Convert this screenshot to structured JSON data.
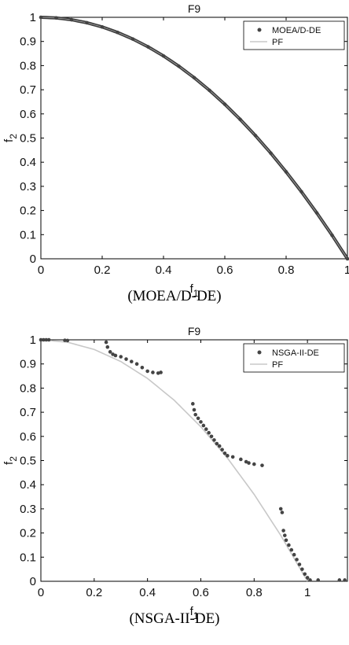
{
  "chart_data": [
    {
      "type": "scatter",
      "title": "F9",
      "xlabel": "f1",
      "ylabel": "f2",
      "xlim": [
        0,
        1
      ],
      "ylim": [
        0,
        1
      ],
      "xticks": [
        "0",
        "0.2",
        "0.4",
        "0.6",
        "0.8",
        "1"
      ],
      "yticks": [
        "0",
        "0.1",
        "0.2",
        "0.3",
        "0.4",
        "0.5",
        "0.6",
        "0.7",
        "0.8",
        "0.9",
        "1"
      ],
      "caption": "(MOEA/D-DE)",
      "legend_placement": "top-right",
      "series": [
        {
          "name": "MOEA/D-DE",
          "kind": "markers",
          "color": "#444444",
          "x": [
            0.0,
            0.05,
            0.1,
            0.15,
            0.2,
            0.25,
            0.3,
            0.35,
            0.4,
            0.45,
            0.5,
            0.55,
            0.6,
            0.65,
            0.7,
            0.75,
            0.8,
            0.85,
            0.9,
            0.95,
            1.0
          ],
          "y": [
            1.0,
            0.9975,
            0.99,
            0.9775,
            0.96,
            0.9375,
            0.91,
            0.8775,
            0.84,
            0.7975,
            0.75,
            0.6975,
            0.64,
            0.5775,
            0.51,
            0.4375,
            0.36,
            0.2775,
            0.19,
            0.0975,
            0.0
          ]
        },
        {
          "name": "PF",
          "kind": "line",
          "color": "#c8c8c8",
          "x": [
            0.0,
            0.1,
            0.2,
            0.3,
            0.4,
            0.5,
            0.6,
            0.7,
            0.8,
            0.9,
            1.0
          ],
          "y": [
            1.0,
            0.99,
            0.96,
            0.91,
            0.84,
            0.75,
            0.64,
            0.51,
            0.36,
            0.19,
            0.0
          ]
        }
      ]
    },
    {
      "type": "scatter",
      "title": "F9",
      "xlabel": "f1",
      "ylabel": "f2",
      "xlim": [
        0,
        1.15
      ],
      "ylim": [
        0,
        1
      ],
      "xticks": [
        "0",
        "0.2",
        "0.4",
        "0.6",
        "0.8",
        "1"
      ],
      "yticks": [
        "0",
        "0.1",
        "0.2",
        "0.3",
        "0.4",
        "0.5",
        "0.6",
        "0.7",
        "0.8",
        "0.9",
        "1"
      ],
      "caption": "(NSGA-II-DE)",
      "legend_placement": "top-right",
      "series": [
        {
          "name": "NSGA-II-DE",
          "kind": "markers",
          "color": "#444444",
          "x": [
            0.0,
            0.01,
            0.02,
            0.03,
            0.09,
            0.1,
            0.245,
            0.25,
            0.26,
            0.27,
            0.28,
            0.3,
            0.32,
            0.34,
            0.36,
            0.38,
            0.4,
            0.42,
            0.44,
            0.45,
            0.57,
            0.575,
            0.58,
            0.59,
            0.6,
            0.61,
            0.62,
            0.63,
            0.64,
            0.65,
            0.66,
            0.67,
            0.68,
            0.69,
            0.7,
            0.72,
            0.75,
            0.77,
            0.78,
            0.8,
            0.83,
            0.9,
            0.905,
            0.91,
            0.915,
            0.92,
            0.93,
            0.94,
            0.95,
            0.96,
            0.97,
            0.98,
            0.99,
            1.0,
            1.01,
            1.04,
            1.12,
            1.14
          ],
          "y": [
            1.0,
            1.0,
            1.0,
            1.0,
            0.998,
            0.997,
            0.99,
            0.97,
            0.95,
            0.94,
            0.935,
            0.93,
            0.92,
            0.91,
            0.9,
            0.885,
            0.87,
            0.865,
            0.862,
            0.865,
            0.735,
            0.71,
            0.69,
            0.675,
            0.66,
            0.645,
            0.63,
            0.615,
            0.6,
            0.585,
            0.57,
            0.56,
            0.545,
            0.53,
            0.52,
            0.515,
            0.505,
            0.495,
            0.49,
            0.485,
            0.48,
            0.3,
            0.285,
            0.21,
            0.19,
            0.17,
            0.15,
            0.13,
            0.11,
            0.09,
            0.07,
            0.05,
            0.03,
            0.015,
            0.005,
            0.005,
            0.005,
            0.005
          ]
        },
        {
          "name": "PF",
          "kind": "line",
          "color": "#c8c8c8",
          "x": [
            0.0,
            0.1,
            0.2,
            0.3,
            0.4,
            0.5,
            0.6,
            0.7,
            0.8,
            0.9,
            1.0
          ],
          "y": [
            1.0,
            0.99,
            0.96,
            0.91,
            0.84,
            0.75,
            0.64,
            0.51,
            0.36,
            0.19,
            0.0
          ]
        }
      ]
    }
  ]
}
